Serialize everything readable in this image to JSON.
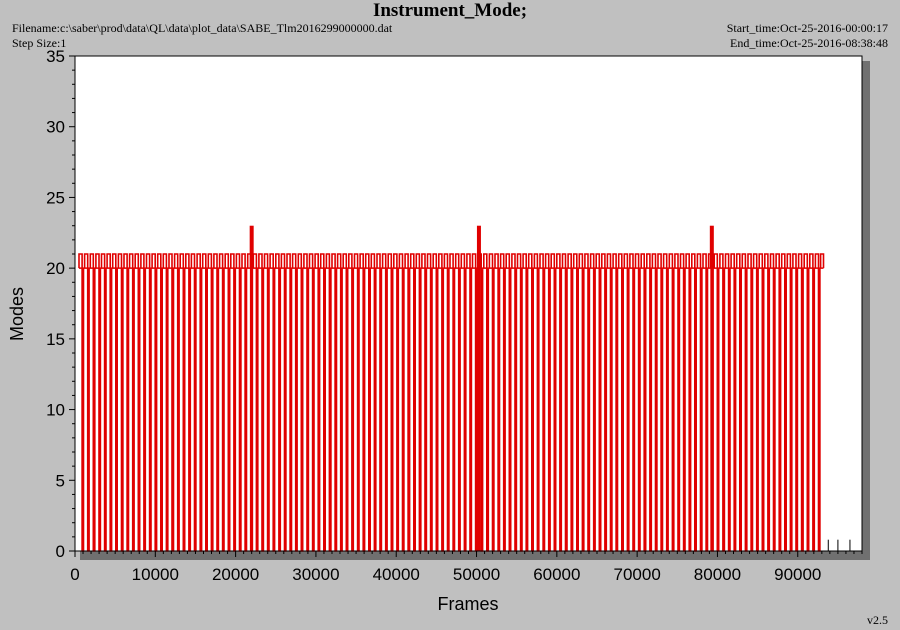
{
  "header": {
    "title": "Instrument_Mode;",
    "filename": "Filename:c:\\saber\\prod\\data\\QL\\data\\plot_data\\SABE_Tlm2016299000000.dat",
    "step_size": "Step Size:1",
    "start_time": "Start_time:Oct-25-2016-00:00:17",
    "end_time": "End_time:Oct-25-2016-08:38:48",
    "version": "v2.5"
  },
  "colors": {
    "background": "#c0c0c0",
    "plot_area": "#ffffff",
    "series": "#e00000",
    "shadow": "#707070"
  },
  "chart_data": {
    "type": "line",
    "title": "Instrument_Mode;",
    "xlabel": "Frames",
    "ylabel": "Modes",
    "xlim": [
      0,
      98000
    ],
    "ylim": [
      0,
      35
    ],
    "xticks": [
      0,
      10000,
      20000,
      30000,
      40000,
      50000,
      60000,
      70000,
      80000,
      90000
    ],
    "yticks": [
      0,
      5,
      10,
      15,
      20,
      25,
      30,
      35
    ],
    "xtick_labels": [
      "0",
      "10000",
      "20000",
      "30000",
      "40000",
      "50000",
      "60000",
      "70000",
      "80000",
      "90000"
    ],
    "ytick_labels": [
      "0",
      "5",
      "10",
      "15",
      "20",
      "25",
      "30",
      "35"
    ],
    "grid": false,
    "series": [
      {
        "mode_levels": {
          "high": 21,
          "low": 20,
          "bottom": 0,
          "peak": 23
        },
        "x_range": [
          500,
          93200
        ],
        "cycle_period_frames": 700,
        "spikes_x": [
          22000,
          50300,
          79300
        ],
        "isolated_points_x": [
          93800,
          95000,
          96500
        ]
      }
    ]
  }
}
